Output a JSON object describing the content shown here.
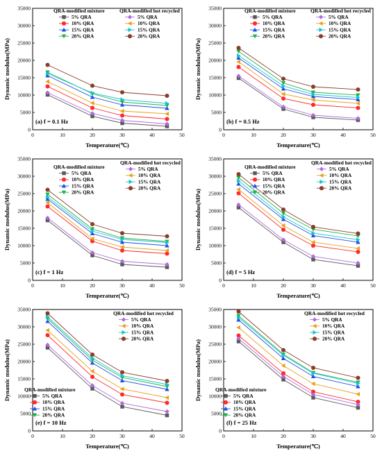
{
  "chart_data": [
    {
      "type": "line",
      "panel_label": "(a) f = 0.1 Hz",
      "xlabel": "Temperature(℃)",
      "ylabel": "Dynamic modulus(MPa)",
      "xlim": [
        0,
        50
      ],
      "ylim": [
        0,
        35000
      ],
      "xticks": [
        0,
        10,
        20,
        30,
        40,
        50
      ],
      "yticks": [
        0,
        5000,
        10000,
        15000,
        20000,
        25000,
        30000,
        35000
      ],
      "legend_groups": [
        "QRA-modified mixture",
        "QRA-modified hot recycled"
      ],
      "x": [
        5,
        20,
        30,
        45
      ],
      "series": [
        {
          "name": "5% QRA",
          "group": 0,
          "values": [
            10100,
            3900,
            1900,
            1000
          ]
        },
        {
          "name": "10% QRA",
          "group": 0,
          "values": [
            12500,
            6300,
            4100,
            3100
          ]
        },
        {
          "name": "15% QRA",
          "group": 0,
          "values": [
            15600,
            9400,
            7200,
            6200
          ]
        },
        {
          "name": "20% QRA",
          "group": 0,
          "values": [
            16600,
            10400,
            8000,
            7000
          ]
        },
        {
          "name": "5% QRA",
          "group": 1,
          "values": [
            10700,
            4700,
            2700,
            1700
          ]
        },
        {
          "name": "10% QRA",
          "group": 1,
          "values": [
            13900,
            7700,
            5400,
            4600
          ]
        },
        {
          "name": "15% QRA",
          "group": 1,
          "values": [
            16200,
            10600,
            8700,
            7600
          ]
        },
        {
          "name": "20% QRA",
          "group": 1,
          "values": [
            18700,
            12700,
            10800,
            9800
          ]
        }
      ]
    },
    {
      "type": "line",
      "panel_label": "(b) f = 0.5 Hz",
      "xlabel": "Temperature(℃)",
      "ylabel": "Dynamic modulus(MPa)",
      "xlim": [
        0,
        50
      ],
      "ylim": [
        0,
        35000
      ],
      "xticks": [
        0,
        10,
        20,
        30,
        40,
        50
      ],
      "yticks": [
        0,
        5000,
        10000,
        15000,
        20000,
        25000,
        30000,
        35000
      ],
      "legend_groups": [
        "QRA-modified mixture",
        "QRA-modified hot recycled"
      ],
      "x": [
        5,
        20,
        30,
        45
      ],
      "series": [
        {
          "name": "5% QRA",
          "group": 0,
          "values": [
            14900,
            6000,
            3600,
            2800
          ]
        },
        {
          "name": "10% QRA",
          "group": 0,
          "values": [
            18100,
            9000,
            7200,
            6300
          ]
        },
        {
          "name": "15% QRA",
          "group": 0,
          "values": [
            20700,
            11800,
            9600,
            8700
          ]
        },
        {
          "name": "20% QRA",
          "group": 0,
          "values": [
            22600,
            13500,
            10800,
            10000
          ]
        },
        {
          "name": "5% QRA",
          "group": 1,
          "values": [
            15500,
            6600,
            4200,
            3300
          ]
        },
        {
          "name": "10% QRA",
          "group": 1,
          "values": [
            19600,
            10300,
            8600,
            7600
          ]
        },
        {
          "name": "15% QRA",
          "group": 1,
          "values": [
            21400,
            12600,
            10200,
            9300
          ]
        },
        {
          "name": "20% QRA",
          "group": 1,
          "values": [
            23600,
            14700,
            12400,
            11600
          ]
        }
      ]
    },
    {
      "type": "line",
      "panel_label": "(c) f = 1 Hz",
      "xlabel": "Temperature(℃)",
      "ylabel": "Dynamic modulus(MPa)",
      "xlim": [
        0,
        50
      ],
      "ylim": [
        0,
        35000
      ],
      "xticks": [
        0,
        10,
        20,
        30,
        40,
        50
      ],
      "yticks": [
        0,
        5000,
        10000,
        15000,
        20000,
        25000,
        30000,
        35000
      ],
      "legend_groups": [
        "QRA-modified mixture",
        "QRA-modified hot recycled"
      ],
      "x": [
        5,
        20,
        30,
        45
      ],
      "series": [
        {
          "name": "5% QRA",
          "group": 0,
          "values": [
            17300,
            7200,
            4600,
            3800
          ]
        },
        {
          "name": "10% QRA",
          "group": 0,
          "values": [
            21300,
            11300,
            8600,
            7700
          ]
        },
        {
          "name": "15% QRA",
          "group": 0,
          "values": [
            23400,
            13500,
            11000,
            10000
          ]
        },
        {
          "name": "20% QRA",
          "group": 0,
          "values": [
            24800,
            14800,
            12200,
            11200
          ]
        },
        {
          "name": "5% QRA",
          "group": 1,
          "values": [
            18000,
            8000,
            5500,
            4600
          ]
        },
        {
          "name": "10% QRA",
          "group": 1,
          "values": [
            22400,
            12000,
            9600,
            8600
          ]
        },
        {
          "name": "15% QRA",
          "group": 1,
          "values": [
            24000,
            14200,
            11800,
            10900
          ]
        },
        {
          "name": "20% QRA",
          "group": 1,
          "values": [
            26100,
            16200,
            13600,
            12700
          ]
        }
      ]
    },
    {
      "type": "line",
      "panel_label": "(d) f = 5 Hz",
      "xlabel": "Temperature(℃)",
      "ylabel": "Dynamic modulus(MPa)",
      "xlim": [
        0,
        50
      ],
      "ylim": [
        0,
        35000
      ],
      "xticks": [
        0,
        10,
        20,
        30,
        40,
        50
      ],
      "yticks": [
        0,
        5000,
        10000,
        15000,
        20000,
        25000,
        30000,
        35000
      ],
      "legend_groups": [
        "QRA-modified mixture",
        "QRA-modified hot recycled"
      ],
      "x": [
        5,
        20,
        30,
        45
      ],
      "series": [
        {
          "name": "5% QRA",
          "group": 0,
          "values": [
            21000,
            11000,
            6000,
            4200
          ]
        },
        {
          "name": "10% QRA",
          "group": 0,
          "values": [
            25100,
            14600,
            10000,
            8200
          ]
        },
        {
          "name": "15% QRA",
          "group": 0,
          "values": [
            27800,
            17600,
            12900,
            11000
          ]
        },
        {
          "name": "20% QRA",
          "group": 0,
          "values": [
            29600,
            19300,
            14700,
            12800
          ]
        },
        {
          "name": "5% QRA",
          "group": 1,
          "values": [
            21800,
            11700,
            6900,
            5000
          ]
        },
        {
          "name": "10% QRA",
          "group": 1,
          "values": [
            26200,
            15800,
            11000,
            9200
          ]
        },
        {
          "name": "15% QRA",
          "group": 1,
          "values": [
            28700,
            18300,
            13600,
            11700
          ]
        },
        {
          "name": "20% QRA",
          "group": 1,
          "values": [
            30600,
            20400,
            15400,
            13500
          ]
        }
      ]
    },
    {
      "type": "line",
      "panel_label": "(e) f = 10 Hz",
      "xlabel": "Temperature(℃)",
      "ylabel": "Dynamic modulus(MPa)",
      "xlim": [
        0,
        50
      ],
      "ylim": [
        0,
        35000
      ],
      "xticks": [
        0,
        10,
        20,
        30,
        40,
        50
      ],
      "yticks": [
        0,
        5000,
        10000,
        15000,
        20000,
        25000,
        30000,
        35000
      ],
      "legend_groups": [
        "QRA-modified mixture",
        "QRA-modified hot recycled"
      ],
      "x": [
        5,
        20,
        30,
        45
      ],
      "series": [
        {
          "name": "5% QRA",
          "group": 0,
          "values": [
            24000,
            12200,
            7000,
            4500
          ]
        },
        {
          "name": "10% QRA",
          "group": 0,
          "values": [
            27600,
            15600,
            10500,
            8100
          ]
        },
        {
          "name": "15% QRA",
          "group": 0,
          "values": [
            31600,
            19600,
            14500,
            12000
          ]
        },
        {
          "name": "20% QRA",
          "group": 0,
          "values": [
            32400,
            20400,
            15400,
            12800
          ]
        },
        {
          "name": "5% QRA",
          "group": 1,
          "values": [
            24800,
            13100,
            8000,
            5600
          ]
        },
        {
          "name": "10% QRA",
          "group": 1,
          "values": [
            29000,
            17200,
            12100,
            9600
          ]
        },
        {
          "name": "15% QRA",
          "group": 1,
          "values": [
            32900,
            21000,
            15900,
            13400
          ]
        },
        {
          "name": "20% QRA",
          "group": 1,
          "values": [
            33900,
            22000,
            16900,
            14400
          ]
        }
      ]
    },
    {
      "type": "line",
      "panel_label": "(f) f = 25 Hz",
      "xlabel": "Temperature(℃)",
      "ylabel": "Dynamic modulus(MPa)",
      "xlim": [
        0,
        50
      ],
      "ylim": [
        0,
        35000
      ],
      "xticks": [
        0,
        10,
        20,
        30,
        40,
        50
      ],
      "yticks": [
        0,
        5000,
        10000,
        15000,
        20000,
        25000,
        30000,
        35000
      ],
      "legend_groups": [
        "QRA-modified mixture",
        "QRA-modified hot recycled"
      ],
      "x": [
        5,
        20,
        30,
        45
      ],
      "series": [
        {
          "name": "5% QRA",
          "group": 0,
          "values": [
            25800,
            14800,
            9600,
            6700
          ]
        },
        {
          "name": "10% QRA",
          "group": 0,
          "values": [
            27500,
            16600,
            11300,
            8400
          ]
        },
        {
          "name": "15% QRA",
          "group": 0,
          "values": [
            32000,
            20900,
            15700,
            12800
          ]
        },
        {
          "name": "20% QRA",
          "group": 0,
          "values": [
            33200,
            22100,
            16800,
            14000
          ]
        },
        {
          "name": "5% QRA",
          "group": 1,
          "values": [
            26600,
            15700,
            10500,
            7600
          ]
        },
        {
          "name": "10% QRA",
          "group": 1,
          "values": [
            29800,
            18800,
            13600,
            10600
          ]
        },
        {
          "name": "15% QRA",
          "group": 1,
          "values": [
            32700,
            21800,
            16600,
            13700
          ]
        },
        {
          "name": "20% QRA",
          "group": 1,
          "values": [
            34400,
            23300,
            18200,
            15300
          ]
        }
      ]
    }
  ],
  "series_style": [
    {
      "color": "#595959",
      "marker": "square"
    },
    {
      "color": "#ff2a2a",
      "marker": "circle"
    },
    {
      "color": "#1f4fe6",
      "marker": "triangle-up"
    },
    {
      "color": "#22b04a",
      "marker": "triangle-down"
    },
    {
      "color": "#b06be0",
      "marker": "diamond"
    },
    {
      "color": "#e6a21a",
      "marker": "triangle-left"
    },
    {
      "color": "#17c4d1",
      "marker": "triangle-right"
    },
    {
      "color": "#8a3c2a",
      "marker": "circle"
    }
  ]
}
